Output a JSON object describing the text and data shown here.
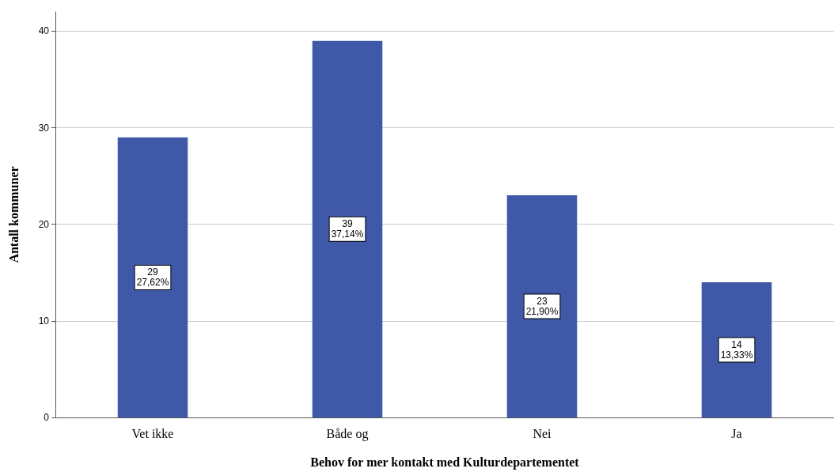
{
  "chart_data": {
    "type": "bar",
    "xlabel": "Behov for mer kontakt med Kulturdepartementet",
    "ylabel": "Antall kommuner",
    "categories": [
      "Vet ikke",
      "Både og",
      "Nei",
      "Ja"
    ],
    "values": [
      29,
      39,
      23,
      14
    ],
    "value_labels": [
      "29\n27,62%",
      "39\n37,14%",
      "23\n21,90%",
      "14\n13,33%"
    ],
    "color": "#3f58a8",
    "ylim": [
      0,
      42
    ],
    "yticks": [
      0,
      10,
      20,
      30,
      40
    ],
    "grid": "y"
  }
}
